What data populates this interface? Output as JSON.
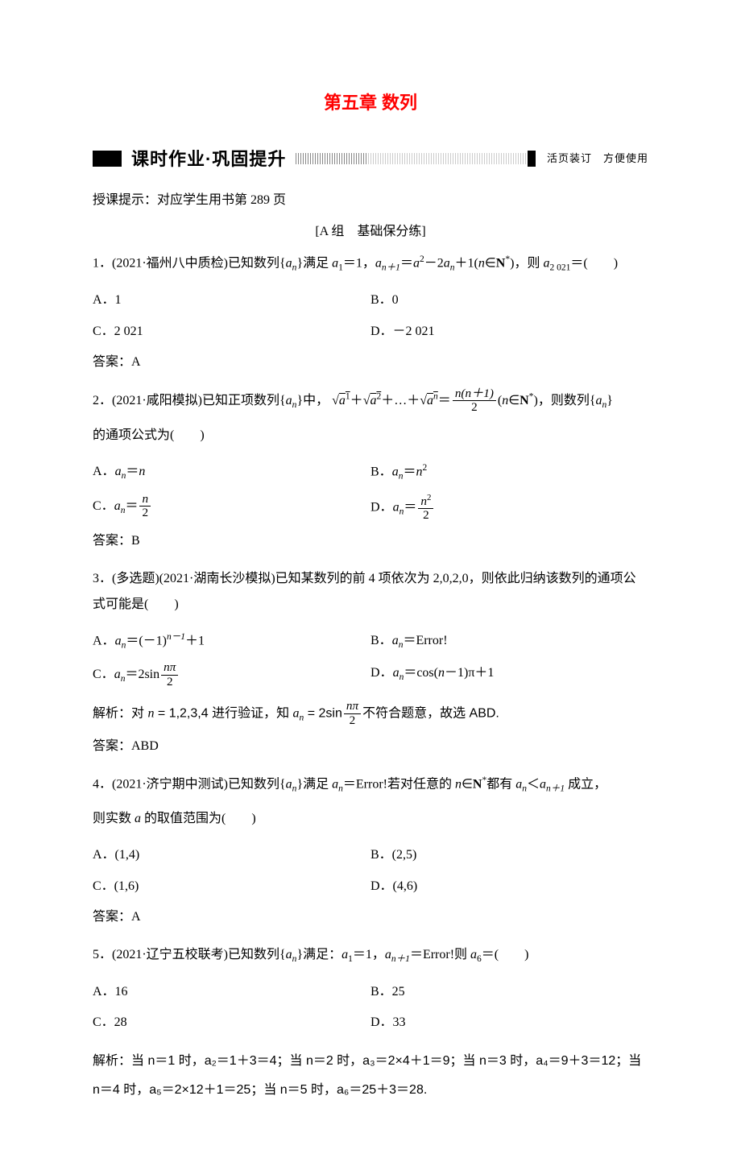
{
  "chapter_title": "第五章 数列",
  "banner": {
    "main": "课时作业·巩固提升",
    "note": "活页装订　方便使用"
  },
  "intro": "授课提示：对应学生用书第 289 页",
  "group_a_label": "[A 组　基础保分练]",
  "q1": {
    "stem_prefix": "1．(2021·福州八中质检)已知数列{",
    "stem_mid": "}满足 ",
    "a1eq": "＝1，",
    "rec": "＝",
    "rec2": "－2",
    "rec3": "＋1(",
    "nin": "∈",
    "nstar": ")，则 ",
    "a2021": "＝(　　)",
    "optA": "A．1",
    "optB": "B．0",
    "optC": "C．2 021",
    "optD": "D．－2 021",
    "answer": "答案：A"
  },
  "q2": {
    "stem1": "2．(2021·咸阳模拟)已知正项数列{",
    "stem2": "}中，",
    "plus": "＋",
    "dots": "＋…＋",
    "eq": "＝",
    "tail": "(",
    "nin": "∈",
    "nstar": ")，则数列{",
    "stem3": "}",
    "line2": "的通项公式为(　　)",
    "optA_pre": "A．",
    "optA_post": "＝",
    "optB_pre": "B．",
    "optB_post": "＝",
    "optC_pre": "C．",
    "optC_post": "＝",
    "optD_pre": "D．",
    "optD_post": "＝",
    "answer": "答案：B"
  },
  "q3": {
    "stem": "3．(多选题)(2021·湖南长沙模拟)已知某数列的前 4 项依次为 2,0,2,0，则依此归纳该数列的通项公式可能是(　　)",
    "optA_pre": "A．",
    "optA_mid": "＝(－1)",
    "optA_post": "＋1",
    "optB_pre": "B．",
    "optB_post": "＝Error!",
    "optC_pre": "C．",
    "optC_mid": "＝2sin",
    "optD_pre": "D．",
    "optD_mid": "＝cos(",
    "optD_post": "－1)π＋1",
    "explain_pre": "解析：对 ",
    "explain_mid1": " = 1,2,3,4 进行验证，知 ",
    "explain_mid2": " = 2sin",
    "explain_post": "不符合题意，故选 ABD.",
    "answer": "答案：ABD"
  },
  "q4": {
    "stem1": "4．(2021·济宁期中测试)已知数列{",
    "stem2": "}满足 ",
    "stem3": "＝Error!若对任意的 ",
    "stem4": "∈",
    "stem5": "都有 ",
    "stem6": "＜",
    "stem7": " 成立，",
    "line2_pre": "则实数 ",
    "line2_post": " 的取值范围为(　　)",
    "optA": "A．(1,4)",
    "optB": "B．(2,5)",
    "optC": "C．(1,6)",
    "optD": "D．(4,6)",
    "answer": "答案：A"
  },
  "q5": {
    "stem1": "5．(2021·辽宁五校联考)已知数列{",
    "stem2": "}满足：",
    "a1": "＝1，",
    "anp1": "＝Error!则 ",
    "a6": "＝(　　)",
    "optA": "A．16",
    "optB": "B．25",
    "optC": "C．28",
    "optD": "D．33",
    "explain": "解析：当 n＝1 时，a₂＝1＋3＝4；当 n＝2 时，a₃＝2×4＋1＝9；当 n＝3 时，a₄＝9＋3＝12；当 n＝4 时，a₅＝2×12＋1＝25；当 n＝5 时，a₆＝25＋3＝28."
  },
  "math": {
    "an": "a",
    "n": "n",
    "a1": "a",
    "sub1": "1",
    "anp1_sub": "n＋1",
    "sq": "2",
    "Nbold": "N",
    "star": "*",
    "a2021sub": "2 021",
    "a_sup_1": "1",
    "a_sup_2": "2",
    "a_sup_n": "n",
    "frac_nn1_num": "n(n＋1)",
    "frac_nn1_den": "2",
    "n2": "n²",
    "frac_n_den2": "2",
    "nm1": "n－1",
    "npi": "nπ",
    "den2": "2",
    "a6sub": "6",
    "a_letter": "a"
  }
}
